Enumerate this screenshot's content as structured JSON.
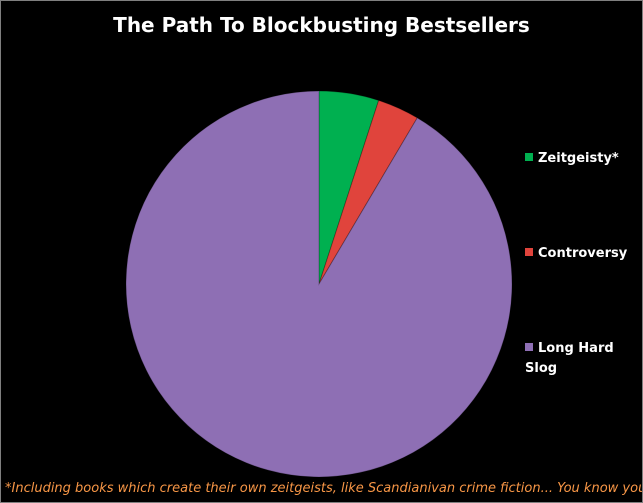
{
  "chart_data": {
    "type": "pie",
    "title": "The Path To Blockbusting Bestsellers",
    "categories": [
      "Zeitgeisty*",
      "Controversy",
      "Long Hard Slog"
    ],
    "values": [
      5,
      3.5,
      91.5
    ],
    "colors": [
      "#00b050",
      "#e0443c",
      "#8e6fb4"
    ],
    "legend_position": "right",
    "footnote": "*Including books which create their own zeitgeists, like Scandianivan crime fiction...  You know yourself"
  }
}
